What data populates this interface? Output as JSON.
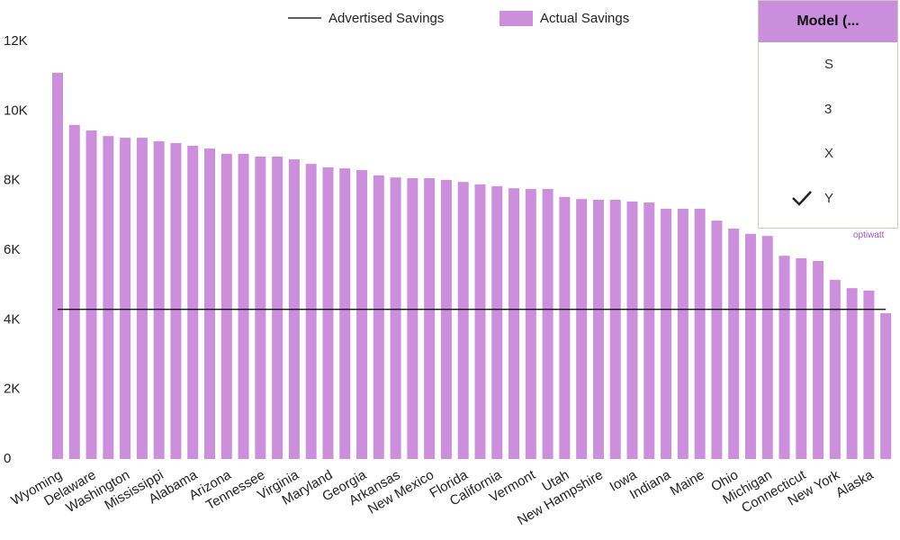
{
  "chart_data": {
    "type": "bar",
    "categories": [
      "Wyoming",
      null,
      "Delaware",
      null,
      "Washington",
      null,
      "Mississippi",
      null,
      "Alabama",
      null,
      "Arizona",
      null,
      "Tennessee",
      null,
      "Virginia",
      null,
      "Maryland",
      null,
      "Georgia",
      null,
      "Arkansas",
      null,
      "New Mexico",
      null,
      "Florida",
      null,
      "California",
      null,
      "Vermont",
      null,
      "Utah",
      null,
      "New Hampshire",
      null,
      "Iowa",
      null,
      "Indiana",
      null,
      "Maine",
      null,
      "Ohio",
      null,
      "Michigan",
      null,
      "Connecticut",
      null,
      "New York",
      null,
      "Alaska",
      null
    ],
    "series": [
      {
        "name": "Advertised Savings",
        "type": "line",
        "color": "#000000",
        "values": [
          4300,
          4300,
          4300,
          4300,
          4300,
          4300,
          4300,
          4300,
          4300,
          4300,
          4300,
          4300,
          4300,
          4300,
          4300,
          4300,
          4300,
          4300,
          4300,
          4300,
          4300,
          4300,
          4300,
          4300,
          4300,
          4300,
          4300,
          4300,
          4300,
          4300,
          4300,
          4300,
          4300,
          4300,
          4300,
          4300,
          4300,
          4300,
          4300,
          4300,
          4300,
          4300,
          4300,
          4300,
          4300,
          4300,
          4300,
          4300,
          4300,
          4300
        ]
      },
      {
        "name": "Actual Savings",
        "type": "bar",
        "color": "#cc8fdc",
        "values": [
          11100,
          9600,
          9440,
          9280,
          9230,
          9230,
          9130,
          9080,
          9000,
          8920,
          8770,
          8770,
          8690,
          8690,
          8610,
          8480,
          8380,
          8350,
          8300,
          8150,
          8090,
          8070,
          8070,
          8020,
          7960,
          7890,
          7840,
          7780,
          7760,
          7760,
          7530,
          7470,
          7450,
          7450,
          7400,
          7370,
          7190,
          7190,
          7190,
          6850,
          6620,
          6470,
          6410,
          5840,
          5770,
          5690,
          5150,
          4910,
          4840,
          4190
        ]
      }
    ],
    "ylim": [
      0,
      12000
    ],
    "yticks": [
      0,
      {
        "value": 2000,
        "label": "2K"
      },
      {
        "value": 4000,
        "label": "4K"
      },
      {
        "value": 6000,
        "label": "6K"
      },
      {
        "value": 8000,
        "label": "8K"
      },
      {
        "value": 10000,
        "label": "10K"
      },
      {
        "value": 12000,
        "label": "12K"
      }
    ],
    "grid": false
  },
  "filter": {
    "title": "Model (...",
    "options": [
      "S",
      "3",
      "X",
      "Y"
    ],
    "selected": "Y"
  },
  "logo": "optiwatt"
}
